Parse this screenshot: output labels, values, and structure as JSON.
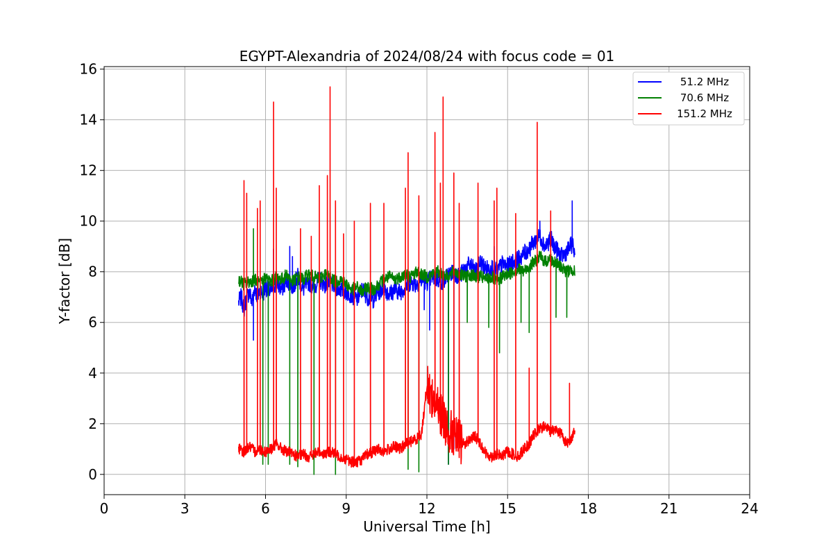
{
  "chart_data": {
    "type": "line",
    "title": "EGYPT-Alexandria of 2024/08/24 with focus code = 01",
    "xlabel": "Universal Time [h]",
    "ylabel": "Y-factor [dB]",
    "xlim": [
      0,
      24
    ],
    "ylim": [
      -0.8,
      16.1
    ],
    "xticks": [
      0,
      3,
      6,
      9,
      12,
      15,
      18,
      21,
      24
    ],
    "yticks": [
      0,
      2,
      4,
      6,
      8,
      10,
      12,
      14,
      16
    ],
    "grid": true,
    "legend_position": "top-right",
    "series": [
      {
        "name": "51.2 MHz",
        "color": "#0000ff",
        "x": [
          5.0,
          5.1,
          5.2,
          5.3,
          5.4,
          5.5,
          5.6,
          5.7,
          5.8,
          5.9,
          6.0,
          6.2,
          6.4,
          6.6,
          6.8,
          7.0,
          7.2,
          7.4,
          7.6,
          7.8,
          8.0,
          8.2,
          8.4,
          8.6,
          8.8,
          9.0,
          9.2,
          9.4,
          9.6,
          9.8,
          10.0,
          10.2,
          10.4,
          10.6,
          10.8,
          11.0,
          11.2,
          11.4,
          11.6,
          11.8,
          12.0,
          12.2,
          12.4,
          12.6,
          12.8,
          13.0,
          13.2,
          13.4,
          13.6,
          13.8,
          14.0,
          14.2,
          14.4,
          14.6,
          14.8,
          15.0,
          15.2,
          15.4,
          15.6,
          15.8,
          16.0,
          16.2,
          16.4,
          16.6,
          16.8,
          17.0,
          17.2,
          17.4,
          17.5
        ],
        "y": [
          6.8,
          7.0,
          6.5,
          7.0,
          7.2,
          6.8,
          7.4,
          7.0,
          7.3,
          7.1,
          7.4,
          7.2,
          7.6,
          7.3,
          7.7,
          7.4,
          7.8,
          7.3,
          7.6,
          7.4,
          7.7,
          7.5,
          7.6,
          7.4,
          7.3,
          7.2,
          7.1,
          6.9,
          7.3,
          7.0,
          6.9,
          7.2,
          7.4,
          7.1,
          7.3,
          7.2,
          7.4,
          7.6,
          7.5,
          7.7,
          7.6,
          7.8,
          7.7,
          7.6,
          7.9,
          8.0,
          7.8,
          8.1,
          8.3,
          8.0,
          8.4,
          8.1,
          8.2,
          8.0,
          8.3,
          8.2,
          8.4,
          8.5,
          8.7,
          8.9,
          9.2,
          9.4,
          9.0,
          9.3,
          8.9,
          8.6,
          8.8,
          9.1,
          8.7
        ],
        "spikes": [
          [
            5.55,
            5.3
          ],
          [
            6.3,
            8.9
          ],
          [
            6.9,
            9.0
          ],
          [
            7.0,
            8.6
          ],
          [
            11.9,
            6.5
          ],
          [
            12.1,
            5.7
          ],
          [
            12.8,
            0.4
          ],
          [
            13.0,
            1.0
          ],
          [
            14.5,
            9.0
          ],
          [
            16.2,
            10.0
          ],
          [
            17.4,
            10.8
          ]
        ]
      },
      {
        "name": "70.6 MHz",
        "color": "#008000",
        "x": [
          5.0,
          5.2,
          5.4,
          5.6,
          5.8,
          6.0,
          6.2,
          6.4,
          6.6,
          6.8,
          7.0,
          7.2,
          7.4,
          7.6,
          7.8,
          8.0,
          8.2,
          8.4,
          8.6,
          8.8,
          9.0,
          9.2,
          9.4,
          9.6,
          9.8,
          10.0,
          10.2,
          10.4,
          10.6,
          10.8,
          11.0,
          11.2,
          11.4,
          11.6,
          11.8,
          12.0,
          12.2,
          12.4,
          12.6,
          12.8,
          13.0,
          13.2,
          13.4,
          13.6,
          13.8,
          14.0,
          14.2,
          14.4,
          14.6,
          14.8,
          15.0,
          15.2,
          15.4,
          15.6,
          15.8,
          16.0,
          16.2,
          16.4,
          16.6,
          16.8,
          17.0,
          17.2,
          17.4,
          17.5
        ],
        "y": [
          7.7,
          7.5,
          7.6,
          7.7,
          7.5,
          7.8,
          7.6,
          7.8,
          7.7,
          7.9,
          7.6,
          7.8,
          7.7,
          7.9,
          7.8,
          7.7,
          7.9,
          7.8,
          7.6,
          7.7,
          7.5,
          7.3,
          7.4,
          7.2,
          7.4,
          7.3,
          7.5,
          7.7,
          7.8,
          7.7,
          7.8,
          7.9,
          7.8,
          8.0,
          7.9,
          7.8,
          7.9,
          8.0,
          7.9,
          7.8,
          8.0,
          7.9,
          7.8,
          7.9,
          7.8,
          7.8,
          7.7,
          7.8,
          7.6,
          7.8,
          7.9,
          8.0,
          8.1,
          8.0,
          8.2,
          8.4,
          8.6,
          8.4,
          8.5,
          8.3,
          8.2,
          8.0,
          8.1,
          8.0
        ],
        "spikes": [
          [
            5.55,
            9.7
          ],
          [
            5.9,
            0.4
          ],
          [
            6.1,
            0.4
          ],
          [
            6.9,
            0.4
          ],
          [
            7.2,
            0.3
          ],
          [
            7.8,
            0.0
          ],
          [
            8.6,
            0.0
          ],
          [
            11.3,
            0.2
          ],
          [
            11.7,
            0.1
          ],
          [
            12.8,
            0.4
          ],
          [
            13.5,
            6.0
          ],
          [
            14.3,
            5.8
          ],
          [
            14.7,
            4.8
          ],
          [
            15.5,
            6.0
          ],
          [
            15.8,
            5.6
          ],
          [
            16.8,
            6.2
          ],
          [
            17.2,
            6.2
          ]
        ]
      },
      {
        "name": "151.2 MHz",
        "color": "#ff0000",
        "x": [
          5.0,
          5.2,
          5.4,
          5.6,
          5.8,
          6.0,
          6.2,
          6.4,
          6.6,
          6.8,
          7.0,
          7.2,
          7.4,
          7.6,
          7.8,
          8.0,
          8.2,
          8.4,
          8.6,
          8.8,
          9.0,
          9.2,
          9.4,
          9.6,
          9.8,
          10.0,
          10.2,
          10.4,
          10.6,
          10.8,
          11.0,
          11.2,
          11.4,
          11.6,
          11.8,
          12.0,
          12.2,
          12.4,
          12.6,
          12.8,
          13.0,
          13.2,
          13.4,
          13.6,
          13.8,
          14.0,
          14.2,
          14.4,
          14.6,
          14.8,
          15.0,
          15.2,
          15.4,
          15.6,
          15.8,
          16.0,
          16.2,
          16.4,
          16.6,
          16.8,
          17.0,
          17.2,
          17.4,
          17.5
        ],
        "y": [
          1.0,
          0.9,
          1.1,
          0.9,
          1.0,
          0.9,
          1.0,
          1.2,
          1.0,
          0.9,
          0.8,
          0.7,
          0.8,
          0.7,
          0.8,
          0.9,
          0.8,
          0.9,
          0.8,
          0.7,
          0.6,
          0.5,
          0.5,
          0.6,
          0.8,
          0.9,
          1.0,
          0.9,
          1.0,
          1.1,
          1.0,
          1.2,
          1.3,
          1.4,
          1.6,
          3.5,
          3.0,
          2.6,
          2.2,
          1.8,
          1.5,
          1.3,
          1.2,
          1.4,
          1.5,
          1.2,
          0.8,
          0.7,
          0.8,
          0.7,
          0.9,
          0.8,
          0.7,
          1.0,
          1.2,
          1.6,
          1.8,
          1.9,
          1.7,
          1.8,
          1.6,
          1.2,
          1.5,
          1.7
        ],
        "spikes": [
          [
            5.2,
            11.6
          ],
          [
            5.3,
            11.1
          ],
          [
            5.7,
            10.5
          ],
          [
            5.8,
            10.8
          ],
          [
            6.3,
            14.7
          ],
          [
            6.4,
            11.3
          ],
          [
            7.3,
            9.7
          ],
          [
            7.7,
            9.4
          ],
          [
            8.0,
            11.4
          ],
          [
            8.3,
            11.8
          ],
          [
            8.4,
            15.3
          ],
          [
            8.6,
            10.8
          ],
          [
            8.9,
            9.5
          ],
          [
            9.3,
            10.0
          ],
          [
            9.9,
            10.7
          ],
          [
            10.4,
            10.7
          ],
          [
            11.2,
            11.3
          ],
          [
            11.3,
            12.7
          ],
          [
            11.7,
            11.0
          ],
          [
            12.3,
            13.5
          ],
          [
            12.5,
            11.5
          ],
          [
            12.6,
            14.9
          ],
          [
            13.0,
            11.9
          ],
          [
            13.2,
            10.7
          ],
          [
            13.9,
            11.5
          ],
          [
            14.5,
            10.8
          ],
          [
            14.6,
            11.3
          ],
          [
            15.3,
            10.3
          ],
          [
            15.8,
            4.2
          ],
          [
            16.1,
            13.9
          ],
          [
            16.6,
            10.4
          ],
          [
            17.3,
            3.6
          ]
        ]
      }
    ]
  }
}
